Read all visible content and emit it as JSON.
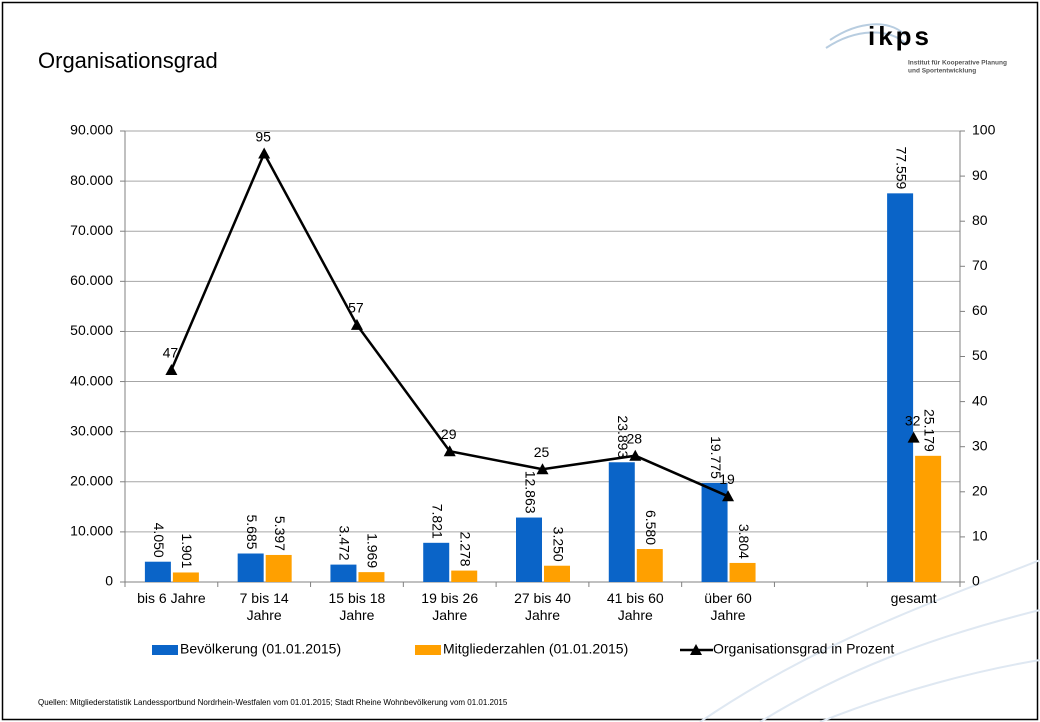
{
  "title": "Organisationsgrad",
  "logo": {
    "name": "ikps",
    "line1": "Institut für Kooperative Planung",
    "line2": "und Sportentwicklung"
  },
  "footer": "Quellen: Mitgliederstatistik Landessportbund Nordrhein-Westfalen vom 01.01.2015; Stadt Rheine Wohnbevölkerung vom 01.01.2015",
  "chart_data": {
    "type": "bar",
    "categories": [
      "bis 6 Jahre",
      "7 bis 14 Jahre",
      "15 bis 18 Jahre",
      "19 bis 26 Jahre",
      "27 bis 40 Jahre",
      "41 bis 60 Jahre",
      "über 60 Jahre",
      null,
      "gesamt"
    ],
    "series": [
      {
        "name": "Bevölkerung (01.01.2015)",
        "color": "#0a64c8",
        "values": [
          4050,
          5685,
          3472,
          7821,
          12863,
          23893,
          19775,
          null,
          77559
        ],
        "value_labels": [
          "4.050",
          "5.685",
          "3.472",
          "7.821",
          "12.863",
          "23.893",
          "19.775",
          null,
          "77.559"
        ]
      },
      {
        "name": "Mitgliederzahlen (01.01.2015)",
        "color": "#ffa000",
        "values": [
          1901,
          5397,
          1969,
          2278,
          3250,
          6580,
          3804,
          null,
          25179
        ],
        "value_labels": [
          "1.901",
          "5.397",
          "1.969",
          "2.278",
          "3.250",
          "6.580",
          "3.804",
          null,
          "25.179"
        ]
      },
      {
        "name": "Organisationsgrad in Prozent",
        "color": "#000000",
        "type": "line",
        "axis": "y2",
        "values": [
          47,
          95,
          57,
          29,
          25,
          28,
          19,
          null,
          32
        ]
      }
    ],
    "ylim": [
      0,
      90000
    ],
    "yticks": [
      0,
      {
        "value": 10000,
        "label": "10.000"
      },
      {
        "value": 20000,
        "label": "20.000"
      },
      {
        "value": 30000,
        "label": "30.000"
      },
      {
        "value": 40000,
        "label": "40.000"
      },
      {
        "value": 50000,
        "label": "50.000"
      },
      {
        "value": 60000,
        "label": "60.000"
      },
      {
        "value": 70000,
        "label": "70.000"
      },
      {
        "value": 80000,
        "label": "80.000"
      },
      {
        "value": 90000,
        "label": "90.000"
      }
    ],
    "y2lim": [
      0,
      100
    ],
    "y2ticks": [
      0,
      10,
      20,
      30,
      40,
      50,
      60,
      70,
      80,
      90,
      100
    ],
    "grid": true,
    "legend": "bottom"
  }
}
